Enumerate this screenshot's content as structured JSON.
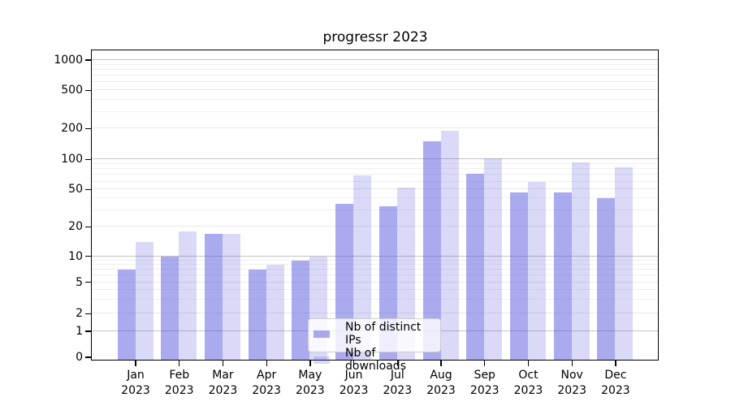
{
  "chart_data": {
    "type": "bar",
    "title": "progressr 2023",
    "categories": [
      "Jan",
      "Feb",
      "Mar",
      "Apr",
      "May",
      "Jun",
      "Jul",
      "Aug",
      "Sep",
      "Oct",
      "Nov",
      "Dec"
    ],
    "year_label": "2023",
    "series": [
      {
        "key": "distinct-ips",
        "name": "Nb of distinct IPs",
        "color": "#aaaaee",
        "rgba": "rgba(85,85,221,0.5)",
        "values": [
          7,
          10,
          17,
          7,
          9,
          35,
          33,
          150,
          72,
          46,
          46,
          40
        ]
      },
      {
        "key": "downloads",
        "name": "Nb of downloads",
        "color": "#d9d9f7",
        "rgba": "rgba(85,85,221,0.22)",
        "values": [
          14,
          18,
          17,
          8,
          10,
          69,
          52,
          190,
          102,
          59,
          93,
          83
        ]
      }
    ],
    "xlabel": "",
    "ylabel": "",
    "y_ticks": [
      0,
      1,
      2,
      5,
      10,
      20,
      50,
      100,
      200,
      500,
      1000
    ],
    "y_decade_lines": [
      1,
      10,
      100,
      1000
    ],
    "y_minor_gridlines": [
      3,
      4,
      6,
      7,
      8,
      9,
      30,
      40,
      60,
      70,
      80,
      90,
      300,
      400,
      600,
      700,
      800,
      900
    ],
    "ylim": [
      0,
      1000
    ],
    "grid": true,
    "legend_position": "lower center",
    "scale": {
      "type": "asinh-like",
      "anchors": [
        [
          0,
          0.008
        ],
        [
          1,
          0.092
        ],
        [
          2,
          0.149
        ],
        [
          5,
          0.251
        ],
        [
          10,
          0.335
        ],
        [
          20,
          0.431
        ],
        [
          50,
          0.552
        ],
        [
          100,
          0.649
        ],
        [
          200,
          0.749
        ],
        [
          500,
          0.873
        ],
        [
          1000,
          0.971
        ]
      ]
    }
  }
}
